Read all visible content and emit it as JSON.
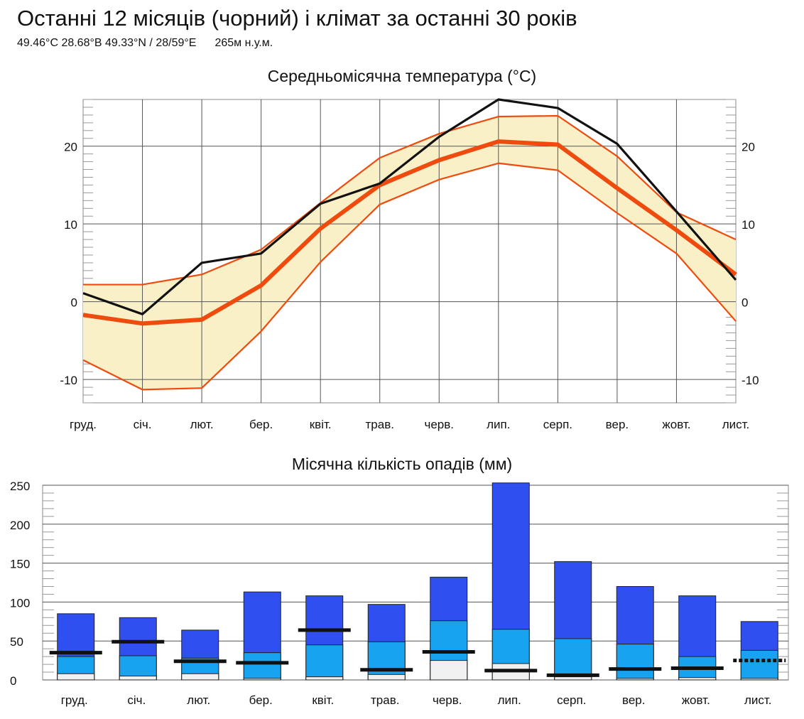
{
  "header": {
    "title": "Останні 12 місяців (чорний) і клімат за останні 30 років",
    "coords": "49.46°C 28.68°B 49.33°N / 28/59°E",
    "elevation": "265м н.у.м."
  },
  "chart_data": [
    {
      "type": "line",
      "title": "Середньомісячна температура (°C)",
      "categories": [
        "груд.",
        "січ.",
        "лют.",
        "бер.",
        "квіт.",
        "трав.",
        "черв.",
        "лип.",
        "серп.",
        "вер.",
        "жовт.",
        "лист."
      ],
      "ylim": [
        -13,
        26
      ],
      "yticks": [
        -10,
        0,
        10,
        20
      ],
      "grid": true,
      "series": [
        {
          "name": "",
          "role": "last-12-months",
          "color": "#111111",
          "values": [
            1.1,
            -1.6,
            5.0,
            6.2,
            12.6,
            15.2,
            21.2,
            26.0,
            24.9,
            20.3,
            11.6,
            2.8
          ]
        },
        {
          "name": "",
          "role": "30-year-mean",
          "color": "#ef4b0e",
          "values": [
            -1.7,
            -2.8,
            -2.3,
            2.1,
            9.4,
            15.0,
            18.2,
            20.6,
            20.2,
            14.6,
            9.2,
            3.5
          ]
        },
        {
          "name": "",
          "role": "30-year-upper",
          "color": "#ef4b0e",
          "values": [
            2.2,
            2.2,
            3.5,
            6.7,
            12.7,
            18.5,
            21.6,
            23.8,
            23.9,
            18.7,
            11.5,
            8.0
          ]
        },
        {
          "name": "",
          "role": "30-year-lower",
          "color": "#ef4b0e",
          "values": [
            -7.5,
            -11.3,
            -11.1,
            -3.8,
            5.1,
            12.5,
            15.7,
            17.8,
            16.9,
            11.4,
            6.2,
            -2.5
          ]
        }
      ],
      "band_color": "#faf0c8"
    },
    {
      "type": "bar",
      "title": "Місячна кількість опадів (мм)",
      "categories": [
        "груд.",
        "січ.",
        "лют.",
        "бер.",
        "квіт.",
        "трав.",
        "черв.",
        "лип.",
        "серп.",
        "вер.",
        "жовт.",
        "лист."
      ],
      "ylim": [
        0,
        250
      ],
      "yticks": [
        0,
        50,
        100,
        150,
        200,
        250
      ],
      "grid": true,
      "series": [
        {
          "name": "",
          "role": "high",
          "color": "#2f4ff0",
          "values": [
            85,
            80,
            64,
            113,
            108,
            97,
            132,
            253,
            152,
            120,
            108,
            75
          ]
        },
        {
          "name": "",
          "role": "mean",
          "color": "#17a3ef",
          "values": [
            30,
            31,
            28,
            35,
            45,
            49,
            76,
            65,
            53,
            46,
            30,
            38
          ]
        },
        {
          "name": "",
          "role": "low",
          "color": "#f0f0f0",
          "values": [
            8,
            5,
            8,
            2,
            4,
            7,
            25,
            21,
            4,
            2,
            3,
            2
          ]
        },
        {
          "name": "",
          "role": "last-12-months",
          "color": "#111111",
          "values": [
            35,
            49,
            24,
            22,
            64,
            13,
            36,
            12,
            6,
            14,
            15,
            25
          ],
          "dotted_last": true
        }
      ]
    }
  ]
}
